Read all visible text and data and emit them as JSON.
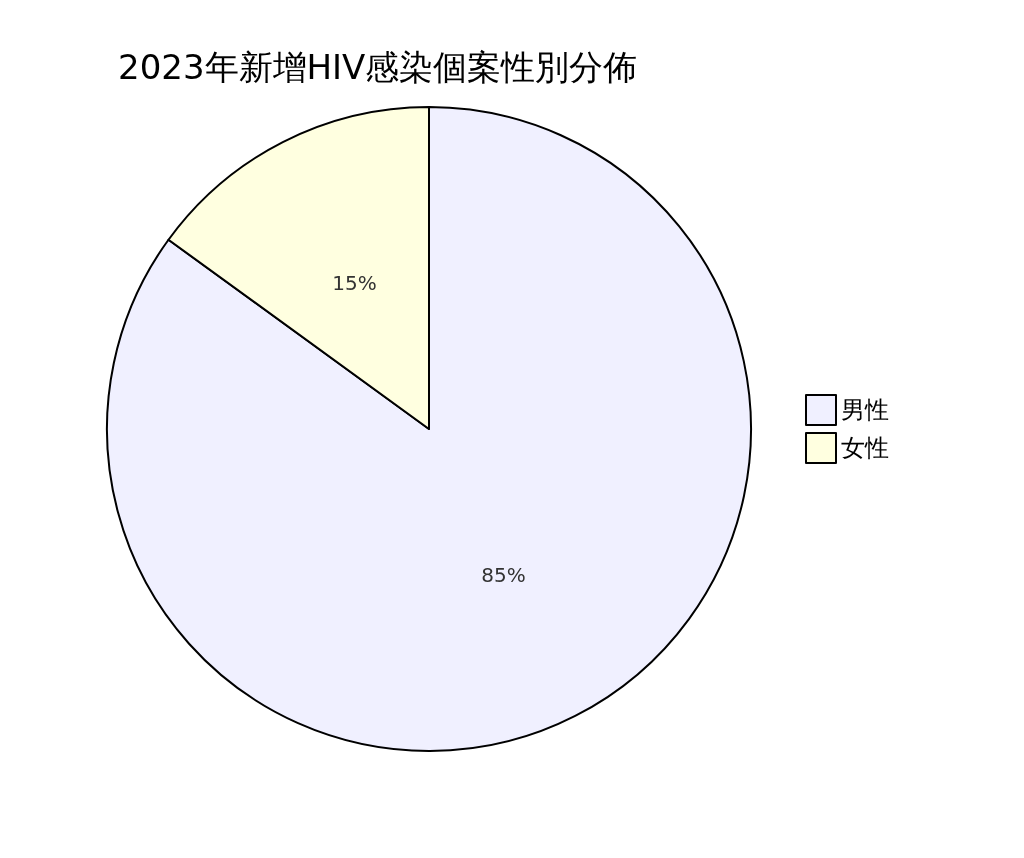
{
  "chart_data": {
    "type": "pie",
    "title": "2023年新增HIV感染個案性別分佈",
    "categories": [
      "男性",
      "女性"
    ],
    "values": [
      85,
      15
    ],
    "colors": [
      "#f0f0ff",
      "#ffffe0"
    ],
    "value_labels": [
      "85%",
      "15%"
    ],
    "legend": "right"
  }
}
